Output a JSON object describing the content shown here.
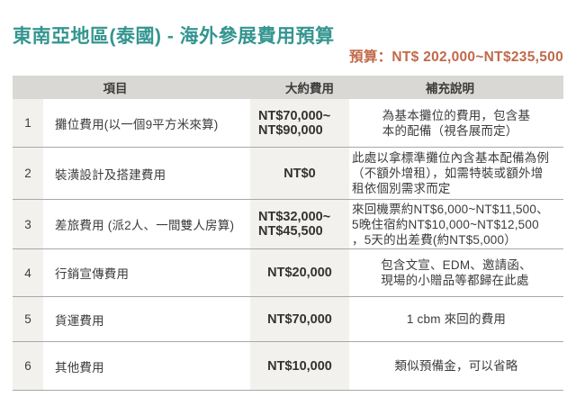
{
  "page": {
    "title": "東南亞地區(泰國) - 海外參展費用預算",
    "subtitle": "預算：NT$ 202,000~NT$235,500"
  },
  "colors": {
    "title_teal": "#349590",
    "subtitle_orange": "#c06a4a",
    "header_bg": "#d9d8d4",
    "shaded_column_bg": "#f2f1ee",
    "row_divider": "#a8a8a8",
    "text": "#3b3b3b"
  },
  "table": {
    "headers": {
      "item": "項目",
      "cost": "大約費用",
      "notes": "補充說明"
    },
    "rows": [
      {
        "no": "1",
        "item": "攤位費用(以一個9平方米來算)",
        "cost": "NT$70,000~\nNT$90,000",
        "note": "為基本攤位的費用，包含基\n本的配備（視各展而定）"
      },
      {
        "no": "2",
        "item": "裝潢設計及搭建費用",
        "cost": "NT$0",
        "note": "此處以拿標準攤位內含基本配備為例\n（不額外增租），如需特裝或額外增\n租依個別需求而定"
      },
      {
        "no": "3",
        "item": "差旅費用 (派2人、一間雙人房算)",
        "cost": "NT$32,000~\nNT$45,500",
        "note": "來回機票約NT$6,000~NT$11,500、\n5晚住宿約NT$10,000~NT$12,500\n，5天的出差費(約NT$5,000）"
      },
      {
        "no": "4",
        "item": "行銷宣傳費用",
        "cost": "NT$20,000",
        "note": "包含文宣、EDM、邀請函、\n現場的小贈品等都歸在此處"
      },
      {
        "no": "5",
        "item": "貨運費用",
        "cost": "NT$70,000",
        "note": "1 cbm 來回的費用"
      },
      {
        "no": "6",
        "item": "其他費用",
        "cost": "NT$10,000",
        "note": "類似預備金，可以省略"
      }
    ]
  }
}
